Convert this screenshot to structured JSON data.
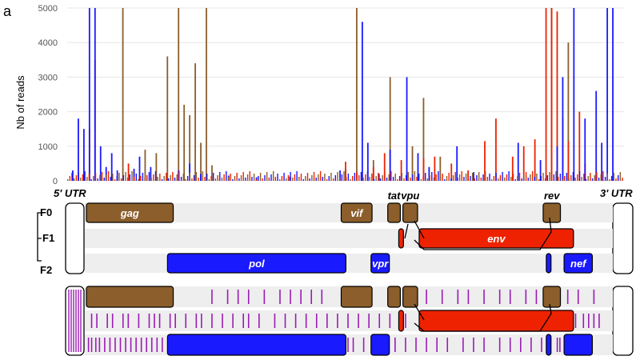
{
  "panel_label": "a",
  "colors": {
    "gag_frame": "#8b5e2b",
    "env_frame": "#ee2200",
    "pol_frame": "#1a1aff",
    "variant_mark": "#9b1ab5",
    "track_bg": "#eeeeee"
  },
  "chart_data": {
    "type": "bar",
    "ylabel": "Nb of reads",
    "ylim": [
      0,
      5000
    ],
    "yticks": [
      0,
      1000,
      2000,
      3000,
      4000,
      5000
    ],
    "grid": true,
    "series": [
      {
        "color": "#8b5e2b",
        "x": [
          0.07,
          0.1,
          0.14,
          0.16,
          0.18,
          0.2,
          0.21,
          0.22,
          0.23,
          0.24,
          0.25,
          0.26,
          0.5,
          0.52,
          0.55,
          0.58,
          0.62,
          0.64,
          0.67,
          0.87,
          0.9
        ],
        "values": [
          200,
          5000,
          900,
          800,
          3600,
          5000,
          2200,
          1900,
          3400,
          1100,
          5000,
          450,
          350,
          5000,
          600,
          3000,
          1000,
          2400,
          700,
          5000,
          4000
        ]
      },
      {
        "color": "#ee2200",
        "x": [
          0.04,
          0.05,
          0.11,
          0.5,
          0.52,
          0.55,
          0.57,
          0.6,
          0.64,
          0.66,
          0.69,
          0.72,
          0.75,
          0.77,
          0.8,
          0.82,
          0.84,
          0.86,
          0.87,
          0.88,
          0.89,
          0.9,
          0.92,
          0.93
        ],
        "values": [
          1500,
          3500,
          500,
          550,
          250,
          400,
          800,
          600,
          650,
          700,
          500,
          300,
          1150,
          1800,
          700,
          1000,
          1200,
          5000,
          5000,
          4900,
          1800,
          1150,
          2000,
          500
        ]
      },
      {
        "color": "#1a1aff",
        "x": [
          0.01,
          0.02,
          0.03,
          0.04,
          0.05,
          0.06,
          0.07,
          0.08,
          0.09,
          0.12,
          0.13,
          0.15,
          0.2,
          0.22,
          0.24,
          0.29,
          0.34,
          0.4,
          0.49,
          0.53,
          0.54,
          0.56,
          0.58,
          0.61,
          0.63,
          0.65,
          0.7,
          0.73,
          0.81,
          0.85,
          0.88,
          0.89,
          0.91,
          0.93,
          0.95,
          0.96,
          0.97,
          0.98
        ],
        "values": [
          300,
          1800,
          1500,
          5000,
          5000,
          1000,
          400,
          800,
          300,
          350,
          700,
          400,
          300,
          500,
          200,
          150,
          100,
          120,
          300,
          4600,
          1100,
          200,
          900,
          3000,
          800,
          400,
          1000,
          250,
          1100,
          600,
          1000,
          3000,
          5000,
          1800,
          2600,
          1100,
          5000,
          5000
        ]
      }
    ]
  },
  "genome_map": {
    "utr5": "5' UTR",
    "utr3": "3' UTR",
    "frames": [
      "F0",
      "F1",
      "F2"
    ],
    "genes": [
      {
        "name": "gag",
        "frame": 0,
        "start": 0.0,
        "end": 0.166,
        "color": "#8b5e2b"
      },
      {
        "name": "vif",
        "frame": 0,
        "start": 0.487,
        "end": 0.546,
        "color": "#8b5e2b"
      },
      {
        "name": "tat",
        "frame": 0,
        "start": 0.576,
        "end": 0.6,
        "color": "#8b5e2b"
      },
      {
        "name": "vpu",
        "frame": 0,
        "start": 0.605,
        "end": 0.633,
        "color": "#8b5e2b"
      },
      {
        "name": "rev",
        "frame": 0,
        "start": 0.873,
        "end": 0.906,
        "color": "#8b5e2b"
      },
      {
        "name": "",
        "frame": 1,
        "start": 0.597,
        "end": 0.606,
        "color": "#ee2200"
      },
      {
        "name": "env",
        "frame": 1,
        "start": 0.636,
        "end": 0.931,
        "color": "#ee2200"
      },
      {
        "name": "pol",
        "frame": 2,
        "start": 0.155,
        "end": 0.496,
        "color": "#1a1aff"
      },
      {
        "name": "vpr",
        "frame": 2,
        "start": 0.544,
        "end": 0.579,
        "color": "#1a1aff"
      },
      {
        "name": "",
        "frame": 2,
        "start": 0.879,
        "end": 0.888,
        "color": "#1a1aff"
      },
      {
        "name": "nef",
        "frame": 2,
        "start": 0.913,
        "end": 0.967,
        "color": "#1a1aff"
      }
    ]
  },
  "variant_tracks": {
    "frame0": [
      0.003,
      0.006,
      0.009,
      0.012,
      0.015,
      0.018,
      0.24,
      0.27,
      0.29,
      0.31,
      0.34,
      0.37,
      0.39,
      0.41,
      0.43,
      0.45,
      0.65,
      0.68,
      0.71,
      0.73,
      0.76,
      0.79,
      0.81,
      0.84,
      0.86,
      0.92,
      0.94,
      0.97
    ],
    "frame1": [
      0.01,
      0.02,
      0.04,
      0.05,
      0.07,
      0.08,
      0.1,
      0.12,
      0.13,
      0.14,
      0.16,
      0.17,
      0.19,
      0.21,
      0.22,
      0.24,
      0.26,
      0.28,
      0.3,
      0.31,
      0.33,
      0.36,
      0.38,
      0.4,
      0.42,
      0.44,
      0.46,
      0.48,
      0.5,
      0.52,
      0.54,
      0.56,
      0.58,
      0.61,
      0.6,
      0.935,
      0.95,
      0.96,
      0.97,
      0.98
    ],
    "frame2": [
      0.004,
      0.01,
      0.018,
      0.025,
      0.035,
      0.045,
      0.055,
      0.065,
      0.075,
      0.085,
      0.095,
      0.105,
      0.115,
      0.125,
      0.135,
      0.145,
      0.5,
      0.51,
      0.53,
      0.59,
      0.61,
      0.63,
      0.65,
      0.67,
      0.69,
      0.72,
      0.74,
      0.76,
      0.79,
      0.81,
      0.83,
      0.85,
      0.87,
      0.9,
      0.905
    ]
  }
}
